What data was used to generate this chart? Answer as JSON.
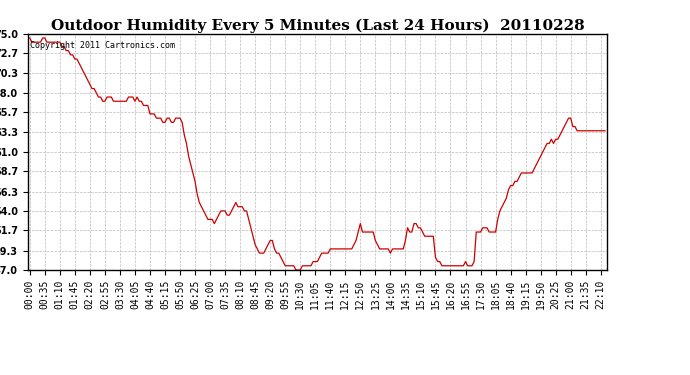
{
  "title": "Outdoor Humidity Every 5 Minutes (Last 24 Hours)  20110228",
  "copyright_text": "Copyright 2011 Cartronics.com",
  "line_color": "#cc0000",
  "bg_color": "#ffffff",
  "plot_bg_color": "#ffffff",
  "grid_color": "#bbbbbb",
  "ylim": [
    47.0,
    75.0
  ],
  "yticks": [
    47.0,
    49.3,
    51.7,
    54.0,
    56.3,
    58.7,
    61.0,
    63.3,
    65.7,
    68.0,
    70.3,
    72.7,
    75.0
  ],
  "title_fontsize": 11,
  "tick_fontsize": 7,
  "copyright_fontsize": 6,
  "humidity_values": [
    74.5,
    74.0,
    74.0,
    74.0,
    74.0,
    74.0,
    74.5,
    74.5,
    74.0,
    74.0,
    74.0,
    74.0,
    74.0,
    74.0,
    74.0,
    73.5,
    73.5,
    73.0,
    73.0,
    72.5,
    72.5,
    72.0,
    72.0,
    71.5,
    71.0,
    70.5,
    70.0,
    69.5,
    69.0,
    68.5,
    68.5,
    68.0,
    67.5,
    67.5,
    67.0,
    67.0,
    67.5,
    67.5,
    67.5,
    67.0,
    67.0,
    67.0,
    67.0,
    67.0,
    67.0,
    67.0,
    67.5,
    67.5,
    67.5,
    67.0,
    67.5,
    67.0,
    67.0,
    66.5,
    66.5,
    66.5,
    65.5,
    65.5,
    65.5,
    65.0,
    65.0,
    65.0,
    64.5,
    64.5,
    65.0,
    65.0,
    64.5,
    64.5,
    65.0,
    65.0,
    65.0,
    64.5,
    63.0,
    62.0,
    60.5,
    59.5,
    58.5,
    57.5,
    56.0,
    55.0,
    54.5,
    54.0,
    53.5,
    53.0,
    53.0,
    53.0,
    52.5,
    53.0,
    53.5,
    54.0,
    54.0,
    54.0,
    53.5,
    53.5,
    54.0,
    54.5,
    55.0,
    54.5,
    54.5,
    54.5,
    54.0,
    54.0,
    53.0,
    52.0,
    51.0,
    50.0,
    49.5,
    49.0,
    49.0,
    49.0,
    49.5,
    50.0,
    50.5,
    50.5,
    49.5,
    49.0,
    49.0,
    48.5,
    48.0,
    47.5,
    47.5,
    47.5,
    47.5,
    47.5,
    47.0,
    47.0,
    47.0,
    47.5,
    47.5,
    47.5,
    47.5,
    47.5,
    48.0,
    48.0,
    48.0,
    48.5,
    49.0,
    49.0,
    49.0,
    49.0,
    49.5,
    49.5,
    49.5,
    49.5,
    49.5,
    49.5,
    49.5,
    49.5,
    49.5,
    49.5,
    49.5,
    50.0,
    50.5,
    51.5,
    52.5,
    51.5,
    51.5,
    51.5,
    51.5,
    51.5,
    51.5,
    50.5,
    50.0,
    49.5,
    49.5,
    49.5,
    49.5,
    49.5,
    49.0,
    49.5,
    49.5,
    49.5,
    49.5,
    49.5,
    49.5,
    50.5,
    52.0,
    51.5,
    51.5,
    52.5,
    52.5,
    52.0,
    52.0,
    51.5,
    51.0,
    51.0,
    51.0,
    51.0,
    51.0,
    48.5,
    48.0,
    48.0,
    47.5,
    47.5,
    47.5,
    47.5,
    47.5,
    47.5,
    47.5,
    47.5,
    47.5,
    47.5,
    47.5,
    48.0,
    47.5,
    47.5,
    47.5,
    48.0,
    51.5,
    51.5,
    51.5,
    52.0,
    52.0,
    52.0,
    51.5,
    51.5,
    51.5,
    51.5,
    53.0,
    54.0,
    54.5,
    55.0,
    55.5,
    56.5,
    57.0,
    57.0,
    57.5,
    57.5,
    58.0,
    58.5,
    58.5,
    58.5,
    58.5,
    58.5,
    58.5,
    59.0,
    59.5,
    60.0,
    60.5,
    61.0,
    61.5,
    62.0,
    62.0,
    62.5,
    62.0,
    62.5,
    62.5,
    63.0,
    63.5,
    64.0,
    64.5,
    65.0,
    65.0,
    64.0,
    64.0,
    63.5,
    63.5,
    63.5,
    63.5,
    63.5,
    63.5,
    63.5,
    63.5,
    63.5,
    63.5,
    63.5,
    63.5,
    63.5,
    63.5
  ]
}
